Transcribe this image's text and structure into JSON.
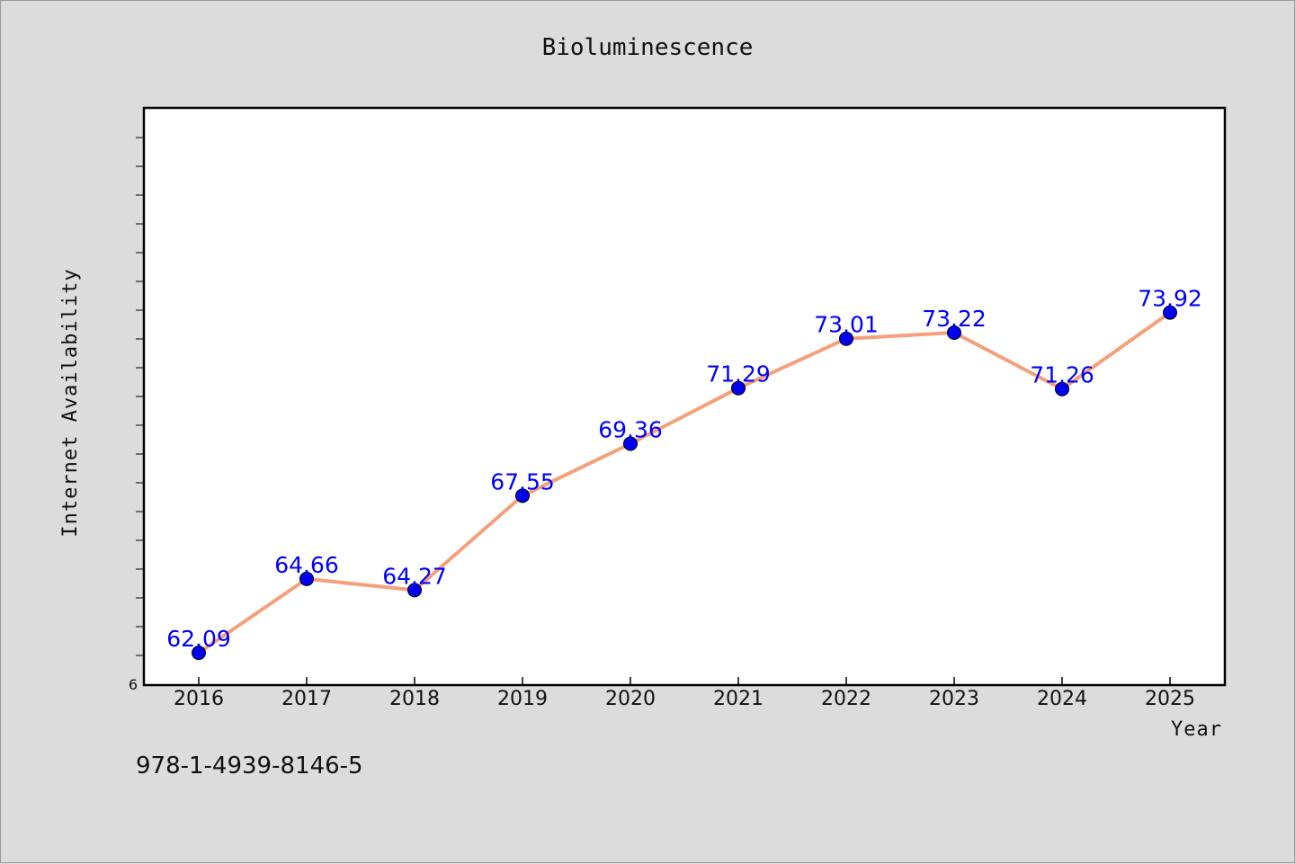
{
  "chart_data": {
    "type": "line",
    "title": "Bioluminescence",
    "xlabel": "Year",
    "ylabel": "Internet Availability",
    "categories": [
      "2016",
      "2017",
      "2018",
      "2019",
      "2020",
      "2021",
      "2022",
      "2023",
      "2024",
      "2025"
    ],
    "series": [
      {
        "values": [
          62.09,
          64.66,
          64.27,
          67.55,
          69.36,
          71.29,
          73.01,
          73.22,
          71.26,
          73.92
        ],
        "labels": [
          "62.09",
          "64.66",
          "64.27",
          "67.55",
          "69.36",
          "71.29",
          "73.01",
          "73.22",
          "71.26",
          "73.92"
        ],
        "line_color": "#f4a07a",
        "marker_color": "#0000ee",
        "label_color": "#0000ff"
      }
    ],
    "ylim": [
      61.0,
      81.0
    ],
    "y_tick_labels": [
      "6"
    ],
    "grid": false,
    "legend": "none"
  },
  "footer": {
    "isbn": "978-1-4939-8146-5"
  }
}
